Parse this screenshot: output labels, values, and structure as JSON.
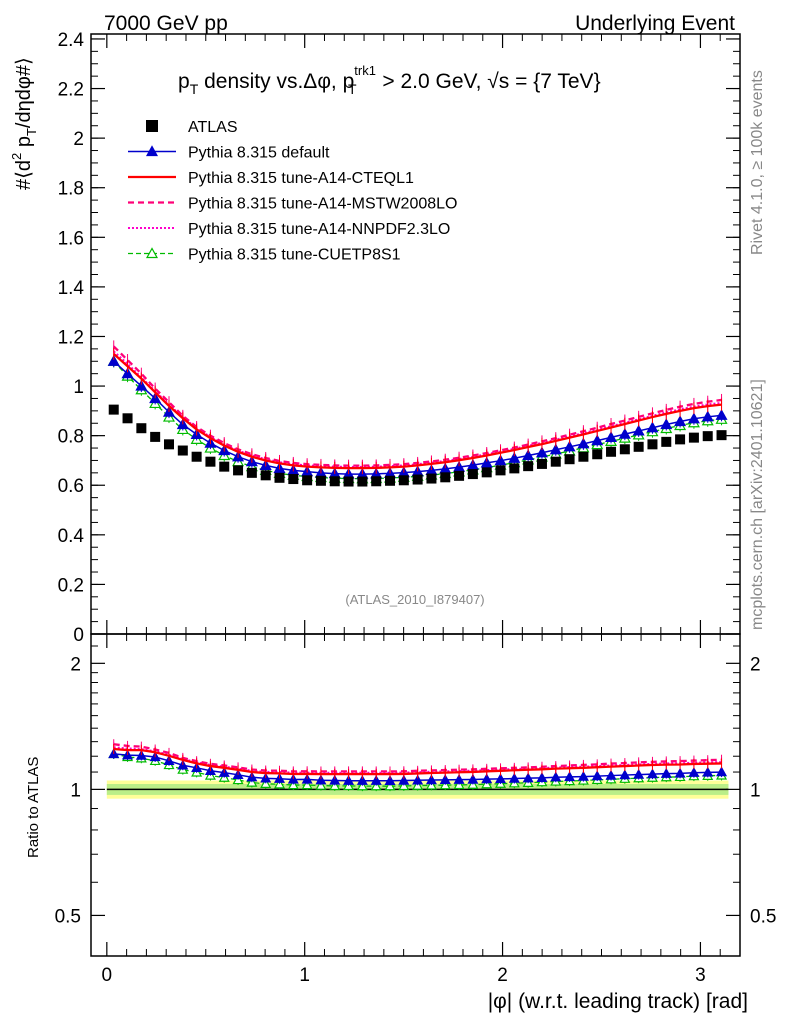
{
  "header": {
    "left": "7000 GeV pp",
    "right": "Underlying Event"
  },
  "side": {
    "rivet": "Rivet 4.1.0, ≥ 100k events",
    "mcplots": "mcplots.cern.ch [arXiv:2401.10621]"
  },
  "colors": {
    "atlas": "#000000",
    "default": "#0000cc",
    "cteql1": "#ff0000",
    "mstw": "#ff0077",
    "nnpdf": "#ff00cc",
    "cuetp8s1": "#00bb00",
    "band_inner": "#bbee88",
    "band_outer": "#ffff99"
  },
  "chart_data": [
    {
      "type": "line",
      "panel": "main",
      "title": "p_T density vs.Δφ, p_T^trk1 > 2.0 GeV, √s = {7 TeV}",
      "title_parts": {
        "a": "p",
        "a_sub": "T",
        "b": " density vs.Δφ, p",
        "b_sup": "trk1",
        "b_sub": "T",
        "c": " > 2.0 GeV, ",
        "d": "√s",
        "e": " = {7 TeV}"
      },
      "ylabel": "#⟨d² p_T/dηdφ#⟩",
      "ylabel_parts": {
        "a": "#⟨d",
        "a_sup": "2",
        "b": " p",
        "b_sub": "T",
        "c": "/dηdφ#⟩"
      },
      "xlim": [
        -0.08,
        3.2
      ],
      "ylim": [
        0,
        2.42
      ],
      "yticks": [
        0,
        0.2,
        0.4,
        0.6,
        0.8,
        1,
        1.2,
        1.4,
        1.6,
        1.8,
        2,
        2.2,
        2.4
      ],
      "ytick_labels": [
        "0",
        "0.2",
        "0.4",
        "0.6",
        "0.8",
        "1",
        "1.2",
        "1.4",
        "1.6",
        "1.8",
        "2",
        "2.2",
        "2.4"
      ],
      "watermark": "(ATLAS_2010_I879407)",
      "legend": [
        {
          "key": "atlas",
          "label": "ATLAS"
        },
        {
          "key": "default",
          "label": "Pythia 8.315 default"
        },
        {
          "key": "cteql1",
          "label": "Pythia 8.315 tune-A14-CTEQL1"
        },
        {
          "key": "mstw",
          "label": "Pythia 8.315 tune-A14-MSTW2008LO"
        },
        {
          "key": "nnpdf",
          "label": "Pythia 8.315 tune-A14-NNPDF2.3LO"
        },
        {
          "key": "cuetp8s1",
          "label": "Pythia 8.315 tune-CUETP8S1"
        }
      ],
      "x": [
        0.0349,
        0.1047,
        0.1745,
        0.2443,
        0.3142,
        0.384,
        0.4538,
        0.5236,
        0.5934,
        0.6632,
        0.733,
        0.8029,
        0.8727,
        0.9425,
        1.0123,
        1.0821,
        1.1519,
        1.2217,
        1.2915,
        1.3614,
        1.4312,
        1.501,
        1.5708,
        1.6406,
        1.7104,
        1.7802,
        1.85,
        1.9199,
        1.9897,
        2.0595,
        2.1293,
        2.1991,
        2.2689,
        2.3387,
        2.4086,
        2.4784,
        2.5482,
        2.618,
        2.6878,
        2.7576,
        2.8274,
        2.8972,
        2.9671,
        3.0369,
        3.1067
      ],
      "series": [
        {
          "key": "atlas",
          "name": "ATLAS",
          "values": [
            0.905,
            0.87,
            0.83,
            0.795,
            0.765,
            0.74,
            0.715,
            0.695,
            0.675,
            0.66,
            0.65,
            0.64,
            0.63,
            0.625,
            0.62,
            0.618,
            0.616,
            0.615,
            0.615,
            0.616,
            0.618,
            0.62,
            0.623,
            0.627,
            0.632,
            0.638,
            0.645,
            0.652,
            0.66,
            0.668,
            0.677,
            0.686,
            0.695,
            0.705,
            0.715,
            0.725,
            0.735,
            0.745,
            0.755,
            0.765,
            0.775,
            0.785,
            0.792,
            0.798,
            0.802
          ]
        },
        {
          "key": "default",
          "name": "Pythia 8.315 default",
          "values": [
            1.1,
            1.05,
            1.0,
            0.95,
            0.895,
            0.845,
            0.805,
            0.77,
            0.74,
            0.715,
            0.695,
            0.68,
            0.668,
            0.66,
            0.655,
            0.65,
            0.647,
            0.645,
            0.645,
            0.646,
            0.648,
            0.651,
            0.655,
            0.66,
            0.666,
            0.673,
            0.681,
            0.69,
            0.699,
            0.709,
            0.72,
            0.731,
            0.743,
            0.755,
            0.767,
            0.78,
            0.793,
            0.806,
            0.819,
            0.832,
            0.845,
            0.857,
            0.868,
            0.876,
            0.882
          ]
        },
        {
          "key": "cteql1",
          "name": "Pythia 8.315 tune-A14-CTEQL1",
          "values": [
            1.13,
            1.08,
            1.03,
            0.975,
            0.92,
            0.87,
            0.825,
            0.79,
            0.76,
            0.735,
            0.715,
            0.7,
            0.688,
            0.68,
            0.675,
            0.672,
            0.67,
            0.669,
            0.669,
            0.67,
            0.672,
            0.675,
            0.68,
            0.686,
            0.693,
            0.701,
            0.71,
            0.72,
            0.731,
            0.742,
            0.754,
            0.766,
            0.779,
            0.792,
            0.805,
            0.819,
            0.833,
            0.847,
            0.861,
            0.875,
            0.888,
            0.9,
            0.911,
            0.919,
            0.925
          ]
        },
        {
          "key": "mstw",
          "name": "Pythia 8.315 tune-A14-MSTW2008LO",
          "values": [
            1.16,
            1.105,
            1.05,
            0.99,
            0.935,
            0.88,
            0.835,
            0.8,
            0.77,
            0.745,
            0.725,
            0.71,
            0.698,
            0.69,
            0.685,
            0.682,
            0.68,
            0.679,
            0.679,
            0.68,
            0.682,
            0.685,
            0.69,
            0.696,
            0.703,
            0.711,
            0.72,
            0.73,
            0.741,
            0.752,
            0.764,
            0.777,
            0.79,
            0.804,
            0.818,
            0.832,
            0.847,
            0.861,
            0.876,
            0.89,
            0.904,
            0.917,
            0.928,
            0.937,
            0.944
          ]
        },
        {
          "key": "nnpdf",
          "name": "Pythia 8.315 tune-A14-NNPDF2.3LO",
          "values": [
            1.14,
            1.09,
            1.035,
            0.98,
            0.925,
            0.875,
            0.83,
            0.795,
            0.765,
            0.74,
            0.72,
            0.705,
            0.693,
            0.685,
            0.68,
            0.677,
            0.675,
            0.674,
            0.674,
            0.675,
            0.677,
            0.68,
            0.685,
            0.691,
            0.698,
            0.706,
            0.715,
            0.725,
            0.736,
            0.747,
            0.759,
            0.771,
            0.784,
            0.797,
            0.81,
            0.824,
            0.838,
            0.852,
            0.866,
            0.88,
            0.894,
            0.906,
            0.917,
            0.926,
            0.932
          ]
        },
        {
          "key": "cuetp8s1",
          "name": "Pythia 8.315 tune-CUETP8S1",
          "values": [
            1.1,
            1.04,
            0.985,
            0.93,
            0.875,
            0.825,
            0.785,
            0.75,
            0.72,
            0.695,
            0.675,
            0.66,
            0.648,
            0.64,
            0.635,
            0.631,
            0.628,
            0.627,
            0.626,
            0.627,
            0.629,
            0.632,
            0.636,
            0.641,
            0.647,
            0.654,
            0.662,
            0.671,
            0.681,
            0.691,
            0.702,
            0.714,
            0.726,
            0.738,
            0.751,
            0.764,
            0.777,
            0.79,
            0.803,
            0.816,
            0.829,
            0.841,
            0.852,
            0.86,
            0.866
          ]
        }
      ]
    },
    {
      "type": "line",
      "panel": "ratio",
      "ylabel": "Ratio to ATLAS",
      "yscale": "log",
      "ylim": [
        0.4,
        2.35
      ],
      "yticks": [
        0.5,
        1,
        2
      ],
      "ytick_labels": [
        "0.5",
        "1",
        "2"
      ],
      "xlabel": "|φ| (w.r.t. leading track) [rad]",
      "xticks": [
        0,
        1,
        2,
        3
      ],
      "xtick_labels": [
        "0",
        "1",
        "2",
        "3"
      ],
      "band_inner": 0.03,
      "band_outer": 0.05
    }
  ]
}
